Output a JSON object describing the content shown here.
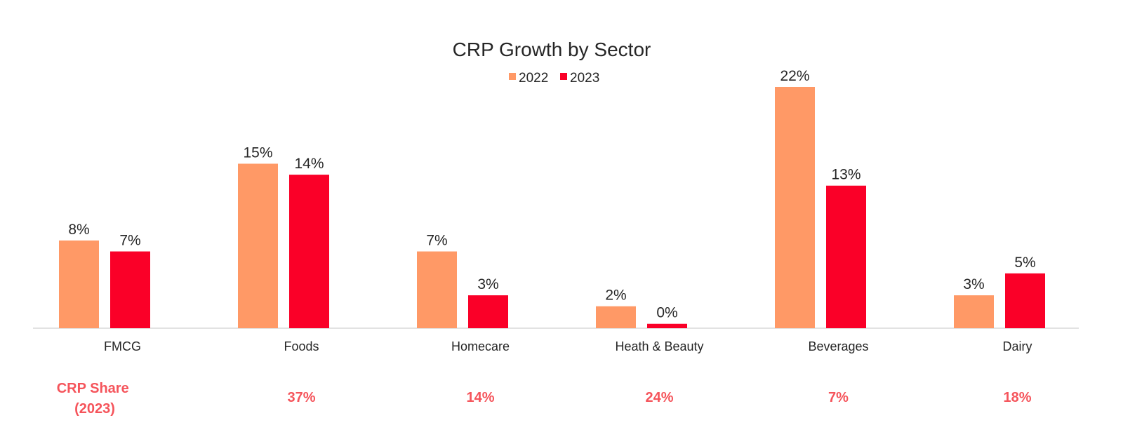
{
  "chart_data": {
    "type": "bar",
    "title": "CRP Growth by Sector",
    "categories": [
      "FMCG",
      "Foods",
      "Homecare",
      "Heath & Beauty",
      "Beverages",
      "Dairy"
    ],
    "series": [
      {
        "name": "2022",
        "color": "#FF9966",
        "values": [
          8,
          15,
          7,
          2,
          22,
          3
        ],
        "labels": [
          "8%",
          "15%",
          "7%",
          "2%",
          "22%",
          "3%"
        ]
      },
      {
        "name": "2023",
        "color": "#FA0028",
        "values": [
          7,
          14,
          3,
          0.4,
          13,
          5
        ],
        "labels": [
          "7%",
          "14%",
          "3%",
          "0%",
          "13%",
          "5%"
        ]
      }
    ],
    "ylim": [
      0,
      22
    ],
    "grid": false,
    "legend_position": "top-center",
    "share_row": {
      "label": "CRP Share (2023)",
      "label_lines": [
        "CRP Share",
        "(2023)"
      ],
      "values": [
        "37%",
        "14%",
        "24%",
        "7%",
        "18%"
      ],
      "color": "#F5545B"
    }
  }
}
